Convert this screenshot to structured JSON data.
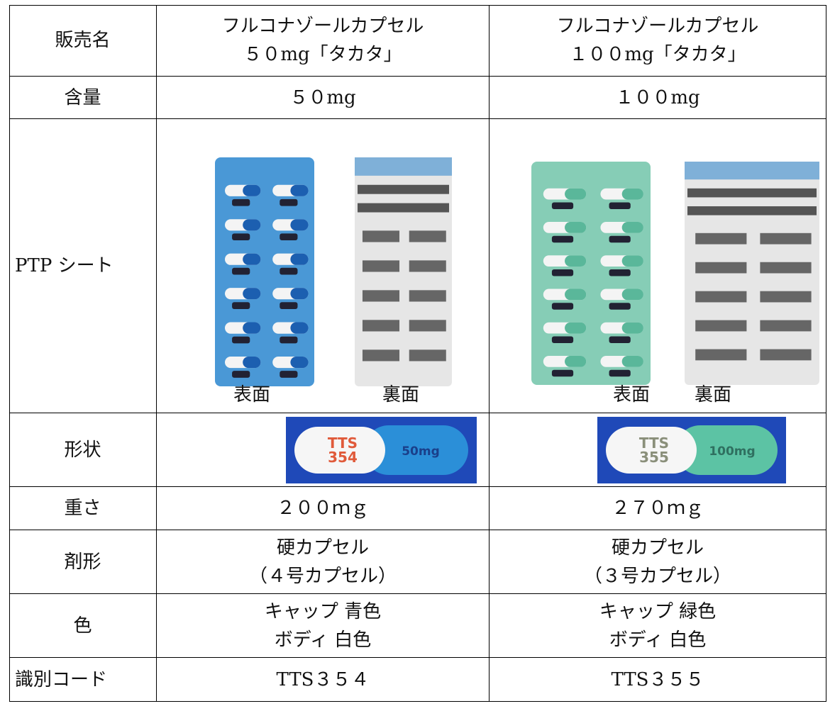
{
  "table": {
    "rows": [
      {
        "label": "販売名",
        "cells": [
          [
            "フルコナゾールカプセル",
            "５０mg「タカタ」"
          ],
          [
            "フルコナゾールカプセル",
            "１００mg「タカタ」"
          ]
        ]
      },
      {
        "label": "含量",
        "cells": [
          [
            "５０mg"
          ],
          [
            "１００mg"
          ]
        ]
      },
      {
        "label": "PTP シート",
        "cells": [
          [
            "表面",
            "裏面"
          ],
          [
            "表面",
            "裏面"
          ]
        ]
      },
      {
        "label": "形状",
        "cells": [
          [
            "TTS",
            "354",
            "50mg"
          ],
          [
            "TTS",
            "355",
            "100mg"
          ]
        ]
      },
      {
        "label": "重さ",
        "cells": [
          [
            "２００ｍｇ"
          ],
          [
            "２７０ｍｇ"
          ]
        ]
      },
      {
        "label": "剤形",
        "cells": [
          [
            "硬カプセル",
            "（４号カプセル）"
          ],
          [
            "硬カプセル",
            "（３号カプセル）"
          ]
        ]
      },
      {
        "label": "色",
        "cells": [
          [
            "キャップ 青色",
            "ボディ 白色"
          ],
          [
            "キャップ 緑色",
            "ボディ 白色"
          ]
        ]
      },
      {
        "label": "識別コード",
        "cells": [
          [
            "TTS３５４"
          ],
          [
            "TTS３５５"
          ]
        ]
      }
    ]
  }
}
